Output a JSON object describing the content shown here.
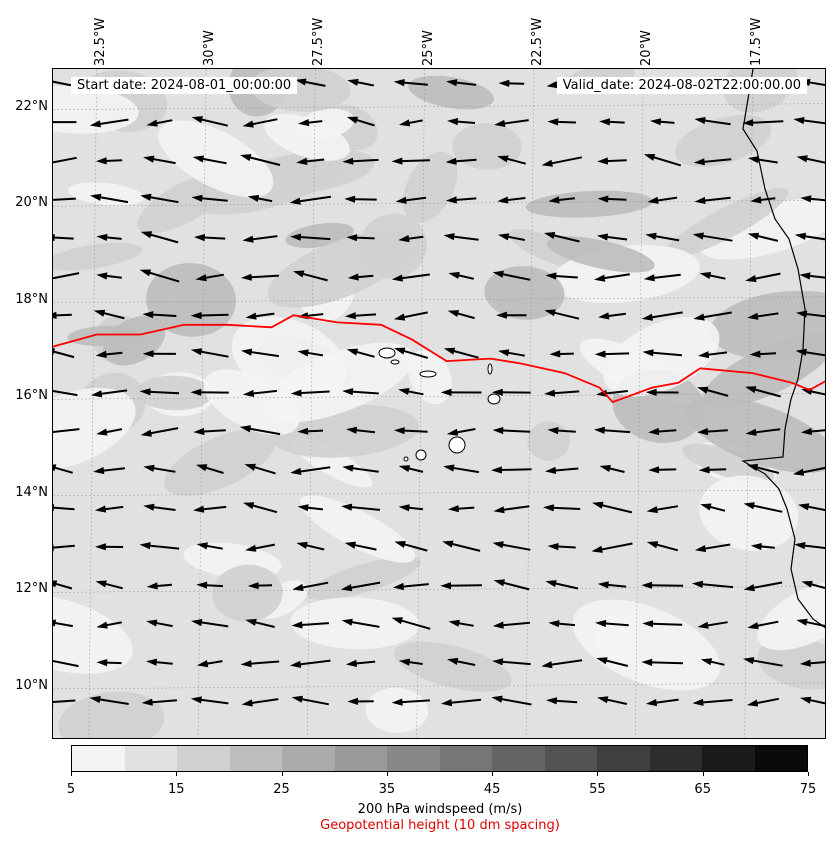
{
  "header": {
    "start_date": "Start date: 2024-08-01_00:00:00",
    "valid_date": "Valid_date: 2024-08-02T22:00:00.00"
  },
  "axes": {
    "lon_labels": [
      "32.5°W",
      "30°W",
      "27.5°W",
      "25°W",
      "22.5°W",
      "20°W",
      "17.5°W"
    ],
    "lat_labels": [
      "22°N",
      "20°N",
      "18°N",
      "16°N",
      "14°N",
      "12°N",
      "10°N"
    ],
    "lon_values": [
      -32.5,
      -30,
      -27.5,
      -25,
      -22.5,
      -20,
      -17.5
    ],
    "lat_values": [
      22,
      20,
      18,
      16,
      14,
      12,
      10
    ],
    "lon_range": [
      -33.5,
      -15.8
    ],
    "lat_range": [
      8.9,
      22.8
    ]
  },
  "colorbar": {
    "ticks": [
      "5",
      "15",
      "25",
      "35",
      "45",
      "55",
      "65",
      "75"
    ],
    "bins": [
      "#f4f4f4",
      "#e1e1e1",
      "#d0d0d0",
      "#bdbdbd",
      "#ababab",
      "#999999",
      "#888888",
      "#767676",
      "#646464",
      "#525252",
      "#3f3f3f",
      "#2d2d2d",
      "#1b1b1b",
      "#0a0a0a"
    ],
    "label": "200 hPa windspeed (m/s)",
    "geo_label": "Geopotential height (10 dm spacing)"
  },
  "colors": {
    "contour": "#ff0000",
    "arrows": "#000000",
    "coast": "#000000",
    "base_field": "#e1e1e1"
  },
  "wind_field": {
    "grid_lat_start": 22.5,
    "grid_lat_step": -0.8,
    "grid_lon_start": -33.3,
    "grid_lon_step": 1.15,
    "prevailing_direction": "easterly"
  },
  "contour_line": {
    "points": [
      [
        -33.5,
        17.05
      ],
      [
        -32.5,
        17.3
      ],
      [
        -31.5,
        17.3
      ],
      [
        -30.5,
        17.5
      ],
      [
        -29.5,
        17.5
      ],
      [
        -28.5,
        17.45
      ],
      [
        -28,
        17.7
      ],
      [
        -27,
        17.55
      ],
      [
        -26,
        17.5
      ],
      [
        -25.3,
        17.2
      ],
      [
        -24.5,
        16.75
      ],
      [
        -23.5,
        16.8
      ],
      [
        -22.8,
        16.7
      ],
      [
        -21.8,
        16.5
      ],
      [
        -21,
        16.2
      ],
      [
        -20.7,
        15.9
      ],
      [
        -19.8,
        16.2
      ],
      [
        -19.2,
        16.3
      ],
      [
        -18.7,
        16.6
      ],
      [
        -17.5,
        16.5
      ],
      [
        -16.6,
        16.3
      ],
      [
        -16.2,
        16.15
      ],
      [
        -15.8,
        16.35
      ]
    ]
  }
}
